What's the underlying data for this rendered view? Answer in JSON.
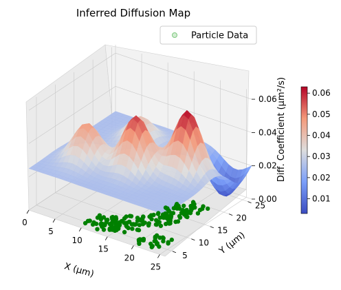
{
  "chart_data": {
    "type": "surface3d",
    "title": "Inferred Diffusion Map",
    "xlabel": "X (μm)",
    "ylabel": "Y (μm)",
    "zlabel": "Diff. Coefficient (μm²/s)",
    "x_ticks": [
      "0",
      "5",
      "10",
      "15",
      "20",
      "25"
    ],
    "y_ticks": [
      "5",
      "10",
      "15",
      "20",
      "25"
    ],
    "z_ticks": [
      "0.00",
      "0.02",
      "0.04",
      "0.06"
    ],
    "colorbar_ticks": [
      "0.01",
      "0.02",
      "0.03",
      "0.04",
      "0.05",
      "0.06"
    ],
    "xlim": [
      0,
      26
    ],
    "ylim": [
      3,
      26
    ],
    "zlim": [
      0,
      0.065
    ],
    "colorbar_range": [
      0.003,
      0.063
    ],
    "colormap": "coolwarm",
    "legend": {
      "position": "upper right",
      "label": "Particle Data",
      "marker_color": "#7fc97f"
    },
    "scatter_color": "#008000",
    "surface_peaks": [
      {
        "x": 6,
        "y": 10,
        "z": 0.048
      },
      {
        "x": 14,
        "y": 12,
        "z": 0.058
      },
      {
        "x": 21,
        "y": 16,
        "z": 0.063
      },
      {
        "x": 9,
        "y": 20,
        "z": 0.04
      }
    ],
    "surface_valley": {
      "x": 23,
      "y": 23,
      "z": 0.003
    },
    "surface_base": 0.025,
    "particle_clusters": [
      {
        "x": 14,
        "y": 7,
        "z": 0.0
      },
      {
        "x": 12,
        "y": 6,
        "z": 0.0
      },
      {
        "x": 16,
        "y": 9,
        "z": 0.0
      },
      {
        "x": 18,
        "y": 12,
        "z": 0.0
      },
      {
        "x": 19,
        "y": 15,
        "z": 0.0
      },
      {
        "x": 20,
        "y": 18,
        "z": 0.0
      },
      {
        "x": 22,
        "y": 6,
        "z": 0.0
      }
    ]
  }
}
